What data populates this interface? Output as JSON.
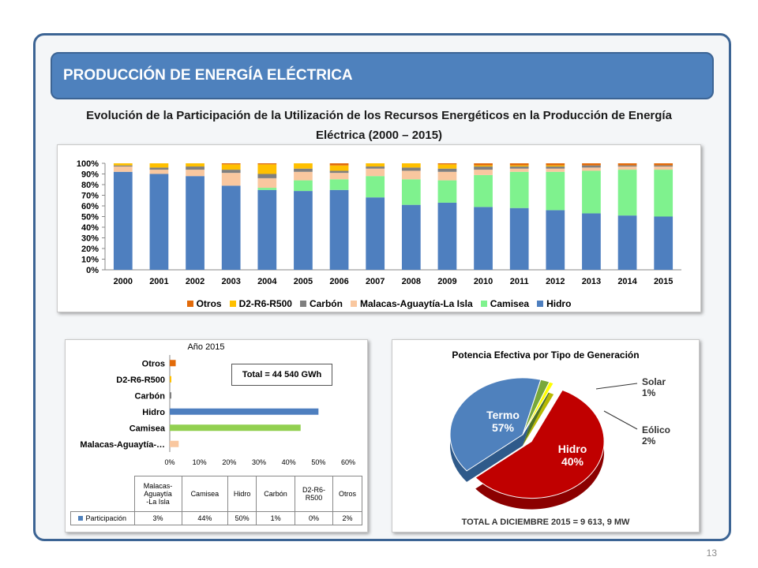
{
  "header": {
    "title": "PRODUCCIÓN DE ENERGÍA ELÉCTRICA"
  },
  "main_title": "Evolución de la Participación de la Utilización de los Recursos Energéticos en la Producción de Energía Eléctrica  (2000 – 2015)",
  "page_number": "13",
  "colors": {
    "Hidro": "#4e7fbf",
    "Camisea": "#7ff28e",
    "Malacas": "#f9c79f",
    "Carbon": "#7f7f7f",
    "D2": "#ffc000",
    "Otros": "#e26b0a",
    "Termo": "#c00000",
    "Eolico": "#78a83a",
    "Solar": "#ffff00",
    "HidroPie": "#4f81bd"
  },
  "chart_data": [
    {
      "type": "bar",
      "stacked": true,
      "categories": [
        "2000",
        "2001",
        "2002",
        "2003",
        "2004",
        "2005",
        "2006",
        "2007",
        "2008",
        "2009",
        "2010",
        "2011",
        "2012",
        "2013",
        "2014",
        "2015"
      ],
      "y_ticks": [
        "0%",
        "10%",
        "20%",
        "30%",
        "40%",
        "50%",
        "60%",
        "70%",
        "80%",
        "90%",
        "100%"
      ],
      "ylim": [
        0,
        100
      ],
      "series": [
        {
          "name": "Hidro",
          "values": [
            92,
            90,
            88,
            79,
            75,
            74,
            75,
            68,
            61,
            63,
            59,
            58,
            56,
            53,
            51,
            50
          ]
        },
        {
          "name": "Camisea",
          "values": [
            0,
            0,
            0,
            0,
            2,
            10,
            10,
            20,
            24,
            21,
            30,
            34,
            36,
            40,
            43,
            44
          ]
        },
        {
          "name": "Malacas-Aguaytía-La Isla",
          "values": [
            5,
            4,
            6,
            12,
            9,
            8,
            6,
            7,
            8,
            8,
            5,
            3,
            3,
            3,
            3,
            3
          ]
        },
        {
          "name": "Carbón",
          "values": [
            1,
            2,
            3,
            3,
            4,
            3,
            2,
            2,
            3,
            3,
            3,
            2,
            2,
            2,
            1,
            1
          ]
        },
        {
          "name": "D2-R6-R500",
          "values": [
            2,
            4,
            3,
            5,
            9,
            5,
            5,
            3,
            4,
            4,
            1,
            1,
            1,
            0,
            0,
            0
          ]
        },
        {
          "name": "Otros",
          "values": [
            0,
            0,
            0,
            1,
            1,
            0,
            2,
            0,
            0,
            1,
            2,
            2,
            2,
            2,
            2,
            2
          ]
        }
      ],
      "legend": [
        "Otros",
        "D2-R6-R500",
        "Carbón",
        "Malacas-Aguaytía-La Isla",
        "Camisea",
        "Hidro"
      ],
      "legend_position": "bottom"
    },
    {
      "type": "bar",
      "orientation": "horizontal",
      "title": "Año 2015",
      "categories": [
        "Otros",
        "D2-R6-R500",
        "Carbón",
        "Hidro",
        "Camisea",
        "Malacas-Aguaytía-…"
      ],
      "values": [
        2,
        0.5,
        0.5,
        50,
        44,
        3
      ],
      "x_ticks": [
        "0%",
        "10%",
        "20%",
        "30%",
        "40%",
        "50%",
        "60%"
      ],
      "xlim": [
        0,
        60
      ],
      "annotation": "Total = 44 540 GWh",
      "table": {
        "headers": [
          "Malacas-\nAguaytía\n-La Isla",
          "Camisea",
          "Hidro",
          "Carbón",
          "D2-R6-\nR500",
          "Otros"
        ],
        "row_label": "Participación",
        "values": [
          "3%",
          "44%",
          "50%",
          "1%",
          "0%",
          "2%"
        ]
      }
    },
    {
      "type": "pie",
      "title": "Potencia Efectiva  por Tipo de Generación",
      "slices": [
        {
          "name": "Termo",
          "value": 57,
          "label": "Termo\n57%"
        },
        {
          "name": "Hidro",
          "value": 40,
          "label": "Hidro\n40%"
        },
        {
          "name": "Eólico",
          "value": 2,
          "label": "Eólico\n2%"
        },
        {
          "name": "Solar",
          "value": 1,
          "label": "Solar\n1%"
        }
      ],
      "footer": "TOTAL  A DICIEMBRE 2015  = 9 613, 9 MW"
    }
  ]
}
